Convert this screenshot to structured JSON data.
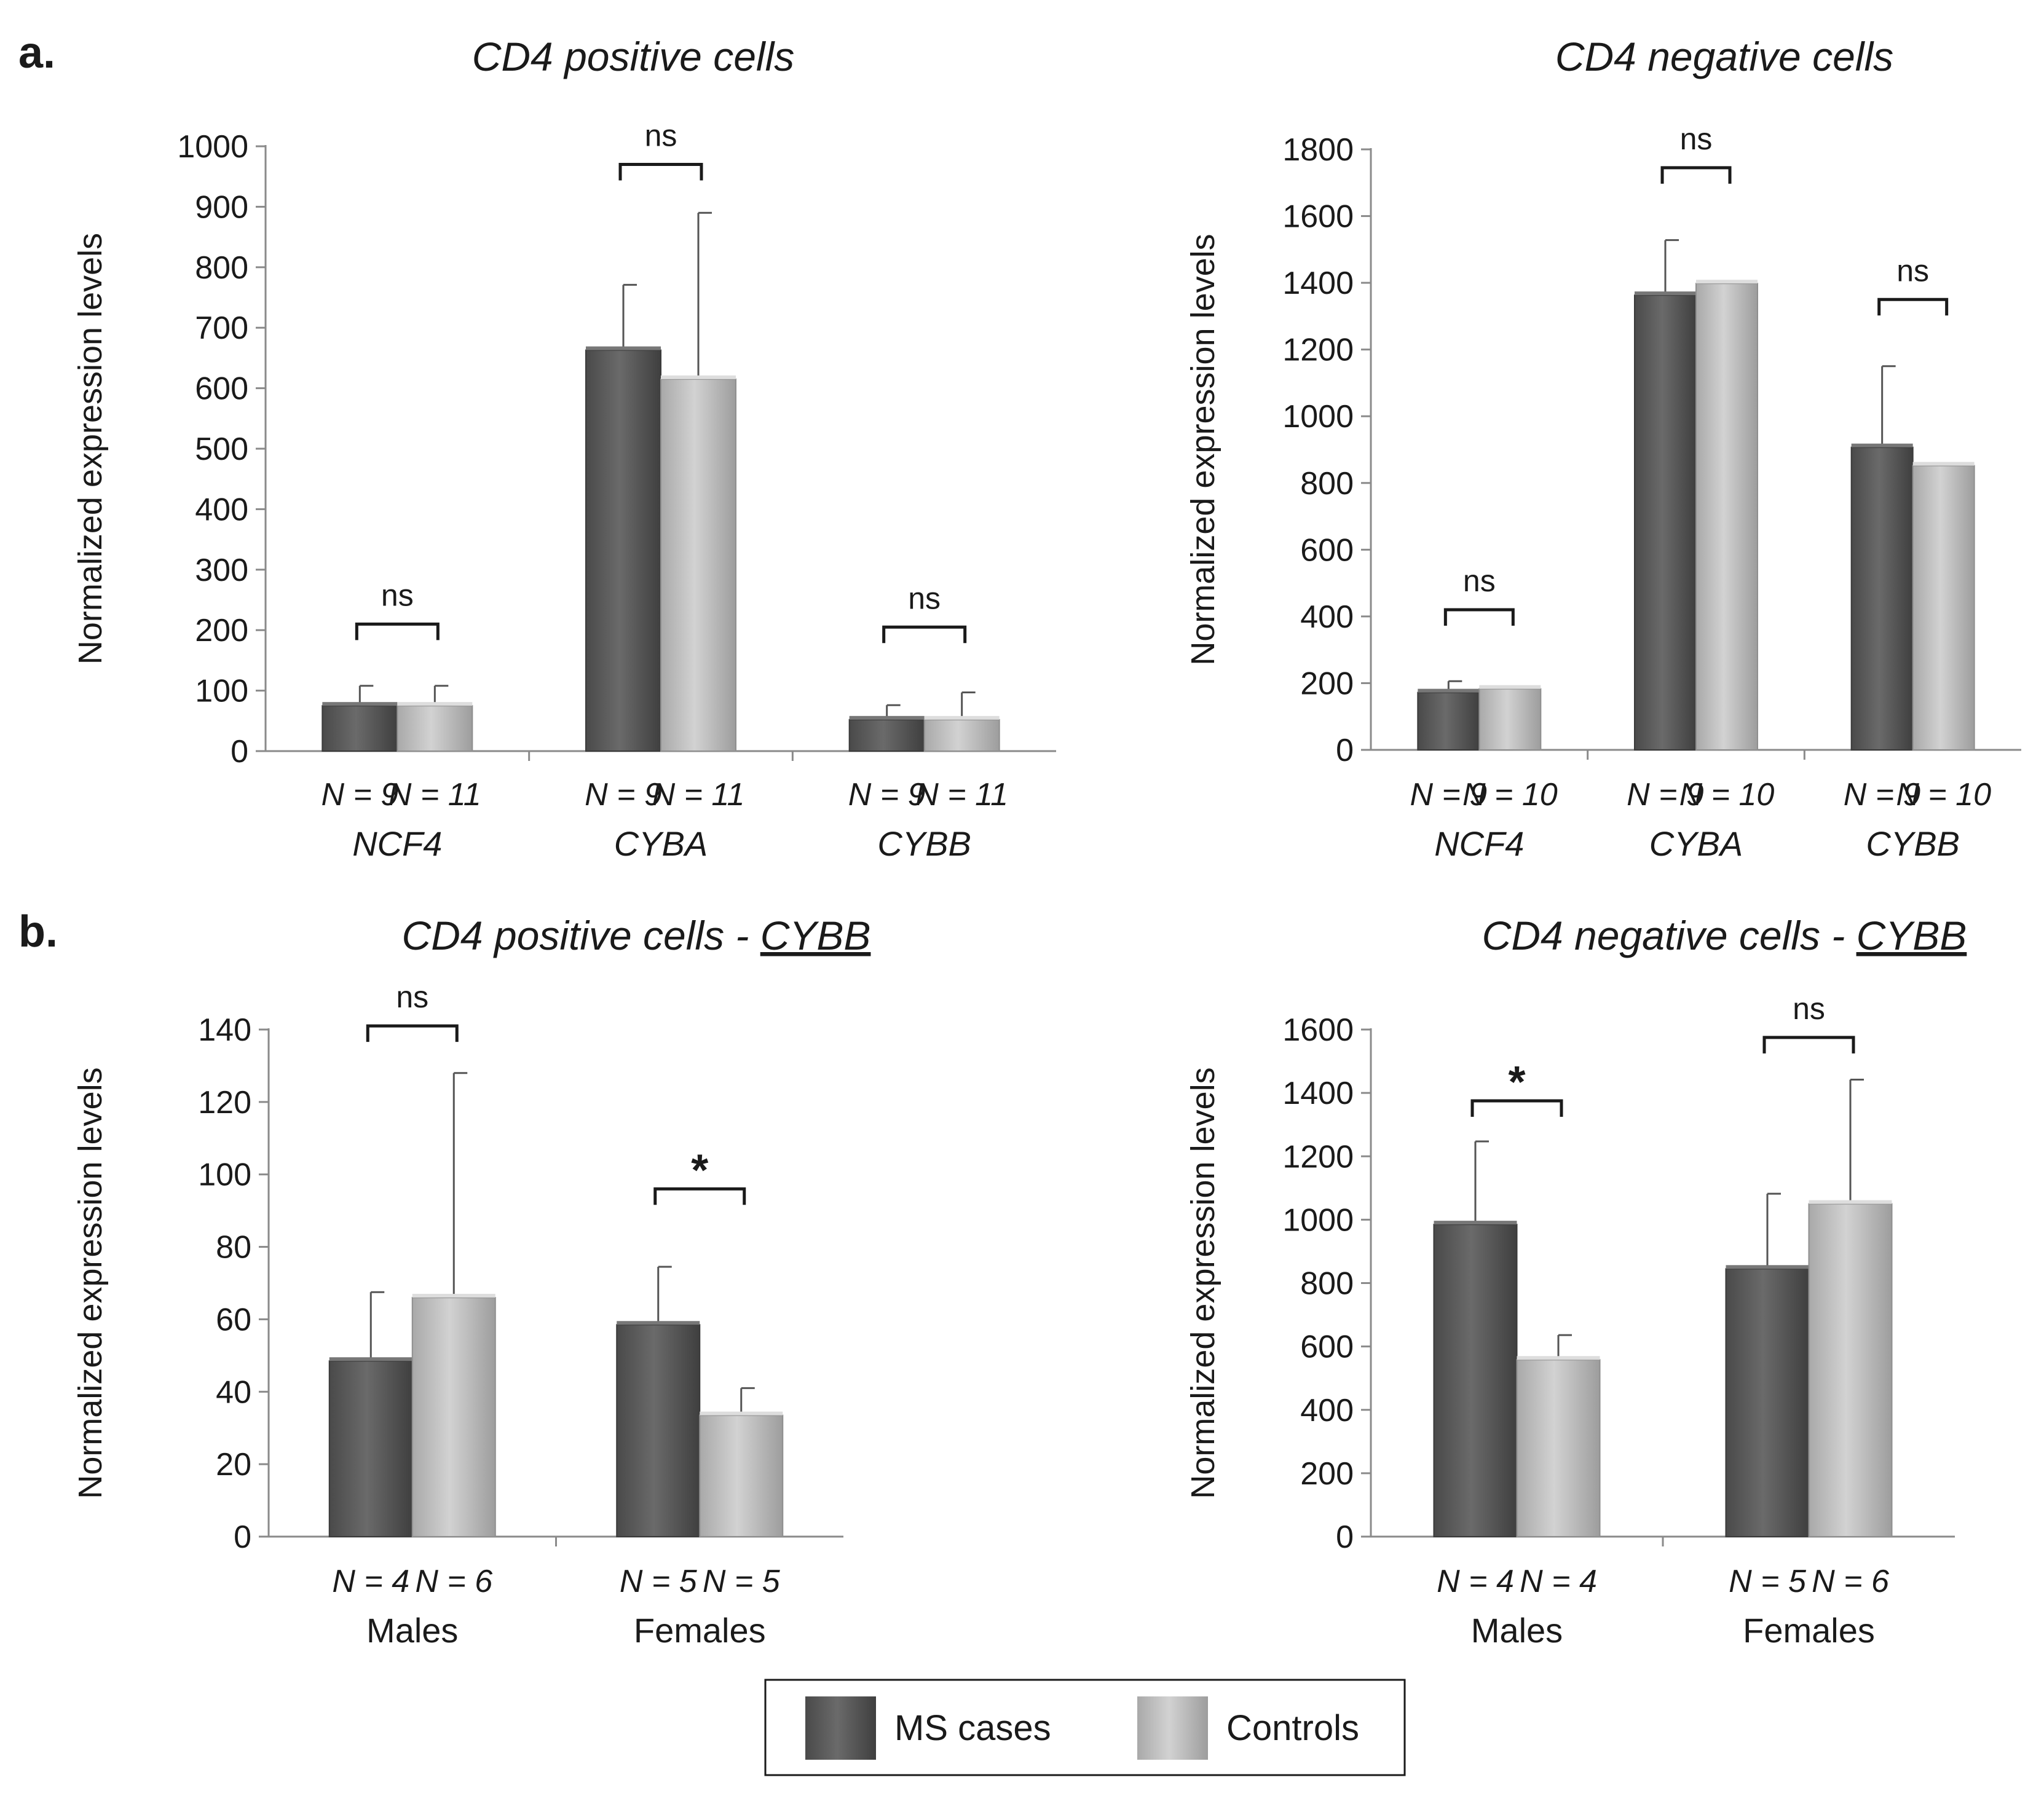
{
  "figure_labels": {
    "a": "a.",
    "b": "b."
  },
  "colors": {
    "ms": "#5d5d5d",
    "controls": "#bcbcbc",
    "axis": "#8a8a8a",
    "bracket": "#1a1a1a"
  },
  "legend": {
    "ms_label": "MS cases",
    "controls_label": "Controls"
  },
  "chart_data": [
    {
      "type": "bar",
      "title": "CD4 positive cells",
      "title_underlined": "",
      "ylabel": "Normalized expression levels",
      "ylim": [
        0,
        1000
      ],
      "yticks": [
        "0",
        "100",
        "200",
        "300",
        "400",
        "500",
        "600",
        "700",
        "800",
        "900",
        "1000"
      ],
      "categories": [
        "NCF4",
        "CYBA",
        "CYBB"
      ],
      "categories_italic": true,
      "n_labels": [
        [
          "N = 9",
          "N = 11"
        ],
        [
          "N = 9",
          "N = 11"
        ],
        [
          "N = 9",
          "N = 11"
        ]
      ],
      "series": [
        {
          "name": "MS cases",
          "values": [
            75,
            663,
            52
          ],
          "errors": [
            33,
            108,
            24
          ]
        },
        {
          "name": "Controls",
          "values": [
            75,
            615,
            52
          ],
          "errors": [
            33,
            275,
            45
          ]
        }
      ],
      "significance": [
        "ns",
        "ns",
        "ns"
      ],
      "sig_brackets_y": [
        210,
        970,
        205
      ]
    },
    {
      "type": "bar",
      "title": "CD4 negative cells",
      "title_underlined": "",
      "ylabel": "Normalized expression levels",
      "ylim": [
        0,
        1800
      ],
      "yticks": [
        "0",
        "200",
        "400",
        "600",
        "800",
        "1000",
        "1200",
        "1400",
        "1600",
        "1800"
      ],
      "categories": [
        "NCF4",
        "CYBA",
        "CYBB"
      ],
      "categories_italic": true,
      "n_labels": [
        [
          "N = 9",
          "N = 10"
        ],
        [
          "N = 9",
          "N = 10"
        ],
        [
          "N = 9",
          "N = 10"
        ]
      ],
      "series": [
        {
          "name": "MS cases",
          "values": [
            172,
            1363,
            907
          ],
          "errors": [
            34,
            165,
            243
          ]
        },
        {
          "name": "Controls",
          "values": [
            183,
            1398,
            852
          ],
          "errors": [
            4,
            4,
            6
          ]
        }
      ],
      "significance": [
        "ns",
        "ns",
        "ns"
      ],
      "sig_brackets_y": [
        420,
        1745,
        1350
      ]
    },
    {
      "type": "bar",
      "title": "CD4 positive cells - ",
      "title_underlined": "CYBB",
      "ylabel": "Normalized expression levels",
      "ylim": [
        0,
        140
      ],
      "yticks": [
        "0",
        "20",
        "40",
        "60",
        "80",
        "100",
        "120",
        "140"
      ],
      "categories": [
        "Males",
        "Females"
      ],
      "categories_italic": false,
      "n_labels": [
        [
          "N = 4",
          "N = 6"
        ],
        [
          "N = 5",
          "N = 5"
        ]
      ],
      "series": [
        {
          "name": "MS cases",
          "values": [
            48.5,
            58.5
          ],
          "errors": [
            19,
            16
          ]
        },
        {
          "name": "Controls",
          "values": [
            66,
            33.5
          ],
          "errors": [
            62,
            7.5
          ]
        }
      ],
      "significance": [
        "ns",
        "*"
      ],
      "sig_brackets_y": [
        141,
        96
      ]
    },
    {
      "type": "bar",
      "title": "CD4 negative cells - ",
      "title_underlined": "CYBB",
      "ylabel": "Normalized expression levels",
      "ylim": [
        0,
        1600
      ],
      "yticks": [
        "0",
        "200",
        "400",
        "600",
        "800",
        "1000",
        "1200",
        "1400",
        "1600"
      ],
      "categories": [
        "Males",
        "Females"
      ],
      "categories_italic": false,
      "n_labels": [
        [
          "N = 4",
          "N = 4"
        ],
        [
          "N = 5",
          "N = 6"
        ]
      ],
      "series": [
        {
          "name": "MS cases",
          "values": [
            985,
            845
          ],
          "errors": [
            262,
            237
          ]
        },
        {
          "name": "Controls",
          "values": [
            558,
            1050
          ],
          "errors": [
            78,
            392
          ]
        }
      ],
      "significance": [
        "*",
        "ns"
      ],
      "sig_brackets_y": [
        1375,
        1575
      ]
    }
  ]
}
